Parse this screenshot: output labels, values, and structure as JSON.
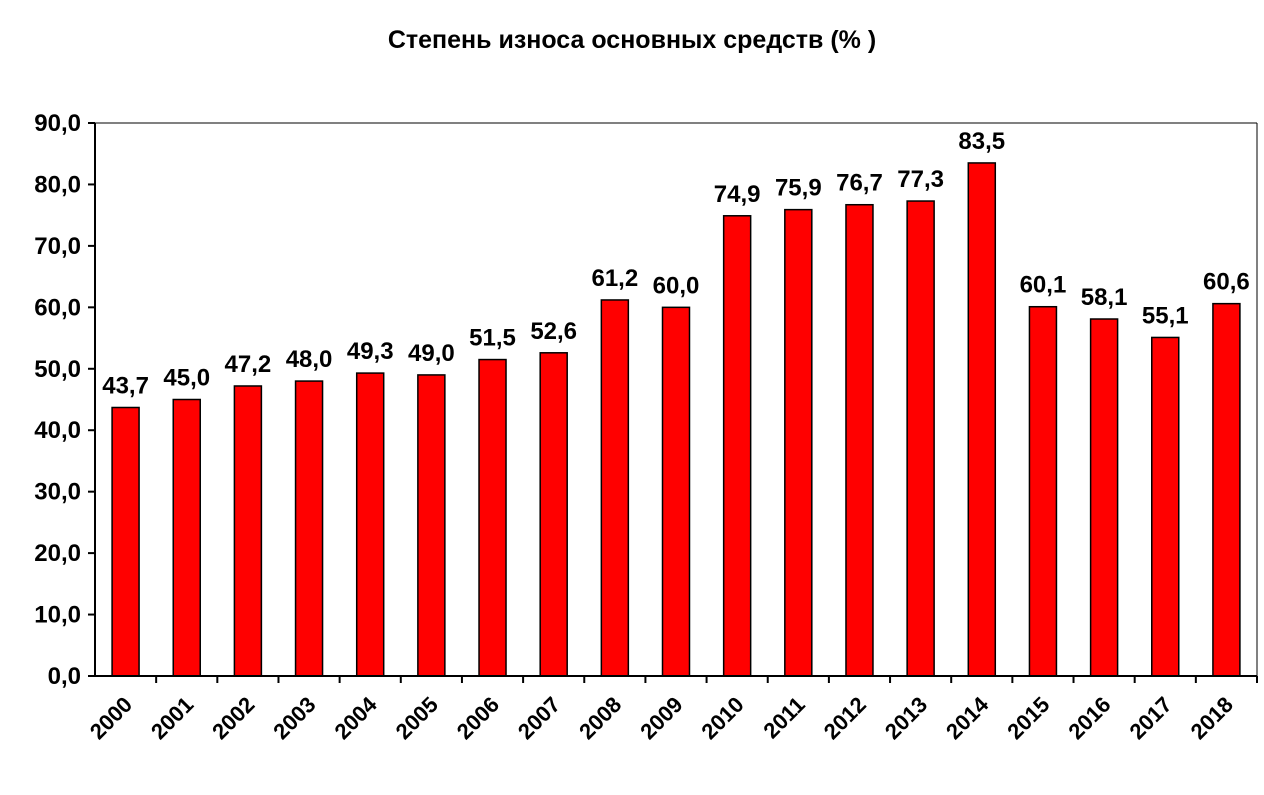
{
  "chart_data": {
    "type": "bar",
    "title": "Степень износа основных средств (% )",
    "categories": [
      "2000",
      "2001",
      "2002",
      "2003",
      "2004",
      "2005",
      "2006",
      "2007",
      "2008",
      "2009",
      "2010",
      "2011",
      "2012",
      "2013",
      "2014",
      "2015",
      "2016",
      "2017",
      "2018"
    ],
    "values": [
      43.7,
      45.0,
      47.2,
      48.0,
      49.3,
      49.0,
      51.5,
      52.6,
      61.2,
      60.0,
      74.9,
      75.9,
      76.7,
      77.3,
      83.5,
      60.1,
      58.1,
      55.1,
      60.6
    ],
    "data_labels": [
      "43,7",
      "45,0",
      "47,2",
      "48,0",
      "49,3",
      "49,0",
      "51,5",
      "52,6",
      "61,2",
      "60,0",
      "74,9",
      "75,9",
      "76,7",
      "77,3",
      "83,5",
      "60,1",
      "58,1",
      "55,1",
      "60,6"
    ],
    "y_ticks": [
      "0,0",
      "10,0",
      "20,0",
      "30,0",
      "40,0",
      "50,0",
      "60,0",
      "70,0",
      "80,0",
      "90,0"
    ],
    "ylim": [
      0,
      90
    ],
    "xlabel": "",
    "ylabel": "",
    "grid": false,
    "legend": "none",
    "bar_color": "#ff0000",
    "bar_border_color": "#000000"
  }
}
